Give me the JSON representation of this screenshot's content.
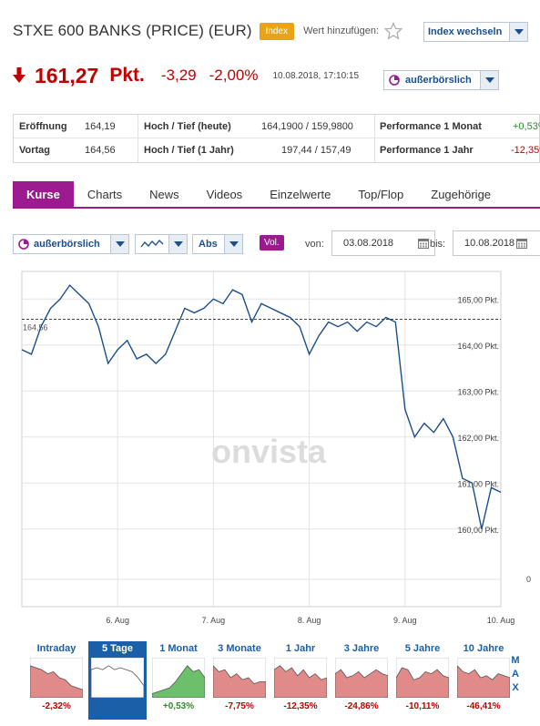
{
  "header": {
    "title": "STXE 600 BANKS (PRICE) (EUR)",
    "badge": "Index",
    "add_label": "Wert hinzufügen:",
    "switch_label": "Index wechseln"
  },
  "quote": {
    "price": "161,27",
    "unit": "Pkt.",
    "change_abs": "-3,29",
    "change_pct": "-2,00%",
    "timestamp": "10.08.2018, 17:10:15",
    "venue": "außerbörslich"
  },
  "stats": {
    "row1": {
      "label1": "Eröffnung",
      "value1": "164,19",
      "label2": "Hoch / Tief (heute)",
      "value2": "164,1900 / 159,9800",
      "label3": "Performance 1 Monat",
      "value3": "+0,53%"
    },
    "row2": {
      "label1": "Vortag",
      "value1": "164,56",
      "label2": "Hoch / Tief (1 Jahr)",
      "value2": "197,44 / 157,49",
      "label3": "Performance 1 Jahr",
      "value3": "-12,35%"
    }
  },
  "tabs": [
    "Kurse",
    "Charts",
    "News",
    "Videos",
    "Einzelwerte",
    "Top/Flop",
    "Zugehörige"
  ],
  "controls": {
    "venue": "außerbörslich",
    "mode": "Abs",
    "vol": "Vol.",
    "from_label": "von:",
    "from_date": "03.08.2018",
    "to_label": "bis:",
    "to_date": "10.08.2018"
  },
  "chart_data": {
    "type": "line",
    "title": "",
    "xlabel": "",
    "ylabel": "",
    "x_ticks": [
      "6. Aug",
      "7. Aug",
      "8. Aug",
      "9. Aug",
      "10. Aug"
    ],
    "y_ticks": [
      "165,00 Pkt.",
      "164,00 Pkt.",
      "163,00 Pkt.",
      "162,00 Pkt.",
      "161,00 Pkt.",
      "160,00 Pkt."
    ],
    "volume_tick": "0",
    "ylim": [
      159.5,
      165.6
    ],
    "reference_label": "164,56",
    "reference_value": 164.56,
    "watermark": "onvista",
    "line_color": "#1a4f8b",
    "x": [
      0,
      0.1,
      0.2,
      0.3,
      0.4,
      0.5,
      0.6,
      0.7,
      0.8,
      0.9,
      1.0,
      1.1,
      1.2,
      1.3,
      1.4,
      1.5,
      1.6,
      1.7,
      1.8,
      1.9,
      2.0,
      2.1,
      2.2,
      2.3,
      2.4,
      2.5,
      2.6,
      2.7,
      2.8,
      2.9,
      3.0,
      3.1,
      3.2,
      3.3,
      3.4,
      3.5,
      3.6,
      3.7,
      3.8,
      3.9,
      4.0,
      4.1,
      4.2,
      4.3,
      4.4,
      4.5,
      4.6,
      4.7,
      4.8,
      4.9,
      5.0
    ],
    "values": [
      163.9,
      163.8,
      164.4,
      164.8,
      165.0,
      165.3,
      165.1,
      164.9,
      164.4,
      163.6,
      163.9,
      164.1,
      163.7,
      163.8,
      163.6,
      163.8,
      164.3,
      164.8,
      164.7,
      164.8,
      165.0,
      164.9,
      165.2,
      165.1,
      164.5,
      164.9,
      164.8,
      164.7,
      164.6,
      164.4,
      163.8,
      164.2,
      164.5,
      164.4,
      164.5,
      164.3,
      164.5,
      164.4,
      164.6,
      164.5,
      162.6,
      162.0,
      162.3,
      162.1,
      162.4,
      162.0,
      161.1,
      161.0,
      160.0,
      160.9,
      160.8
    ]
  },
  "thumbs": [
    {
      "label": "Intraday",
      "value": "-2,32%",
      "color": "#c00000",
      "active": false,
      "kind": "down"
    },
    {
      "label": "5 Tage",
      "value": "",
      "color": "#c00000",
      "active": true,
      "kind": "flat"
    },
    {
      "label": "1 Monat",
      "value": "+0,53%",
      "color": "#2a8a2a",
      "active": false,
      "kind": "up"
    },
    {
      "label": "3 Monate",
      "value": "-7,75%",
      "color": "#c00000",
      "active": false,
      "kind": "wave"
    },
    {
      "label": "1 Jahr",
      "value": "-12,35%",
      "color": "#c00000",
      "active": false,
      "kind": "wave2"
    },
    {
      "label": "3 Jahre",
      "value": "-24,86%",
      "color": "#c00000",
      "active": false,
      "kind": "wave3"
    },
    {
      "label": "5 Jahre",
      "value": "-10,11%",
      "color": "#c00000",
      "active": false,
      "kind": "wave4"
    },
    {
      "label": "10 Jahre",
      "value": "-46,41%",
      "color": "#c00000",
      "active": false,
      "kind": "wave5"
    }
  ],
  "max_letters": [
    "M",
    "A",
    "X"
  ]
}
